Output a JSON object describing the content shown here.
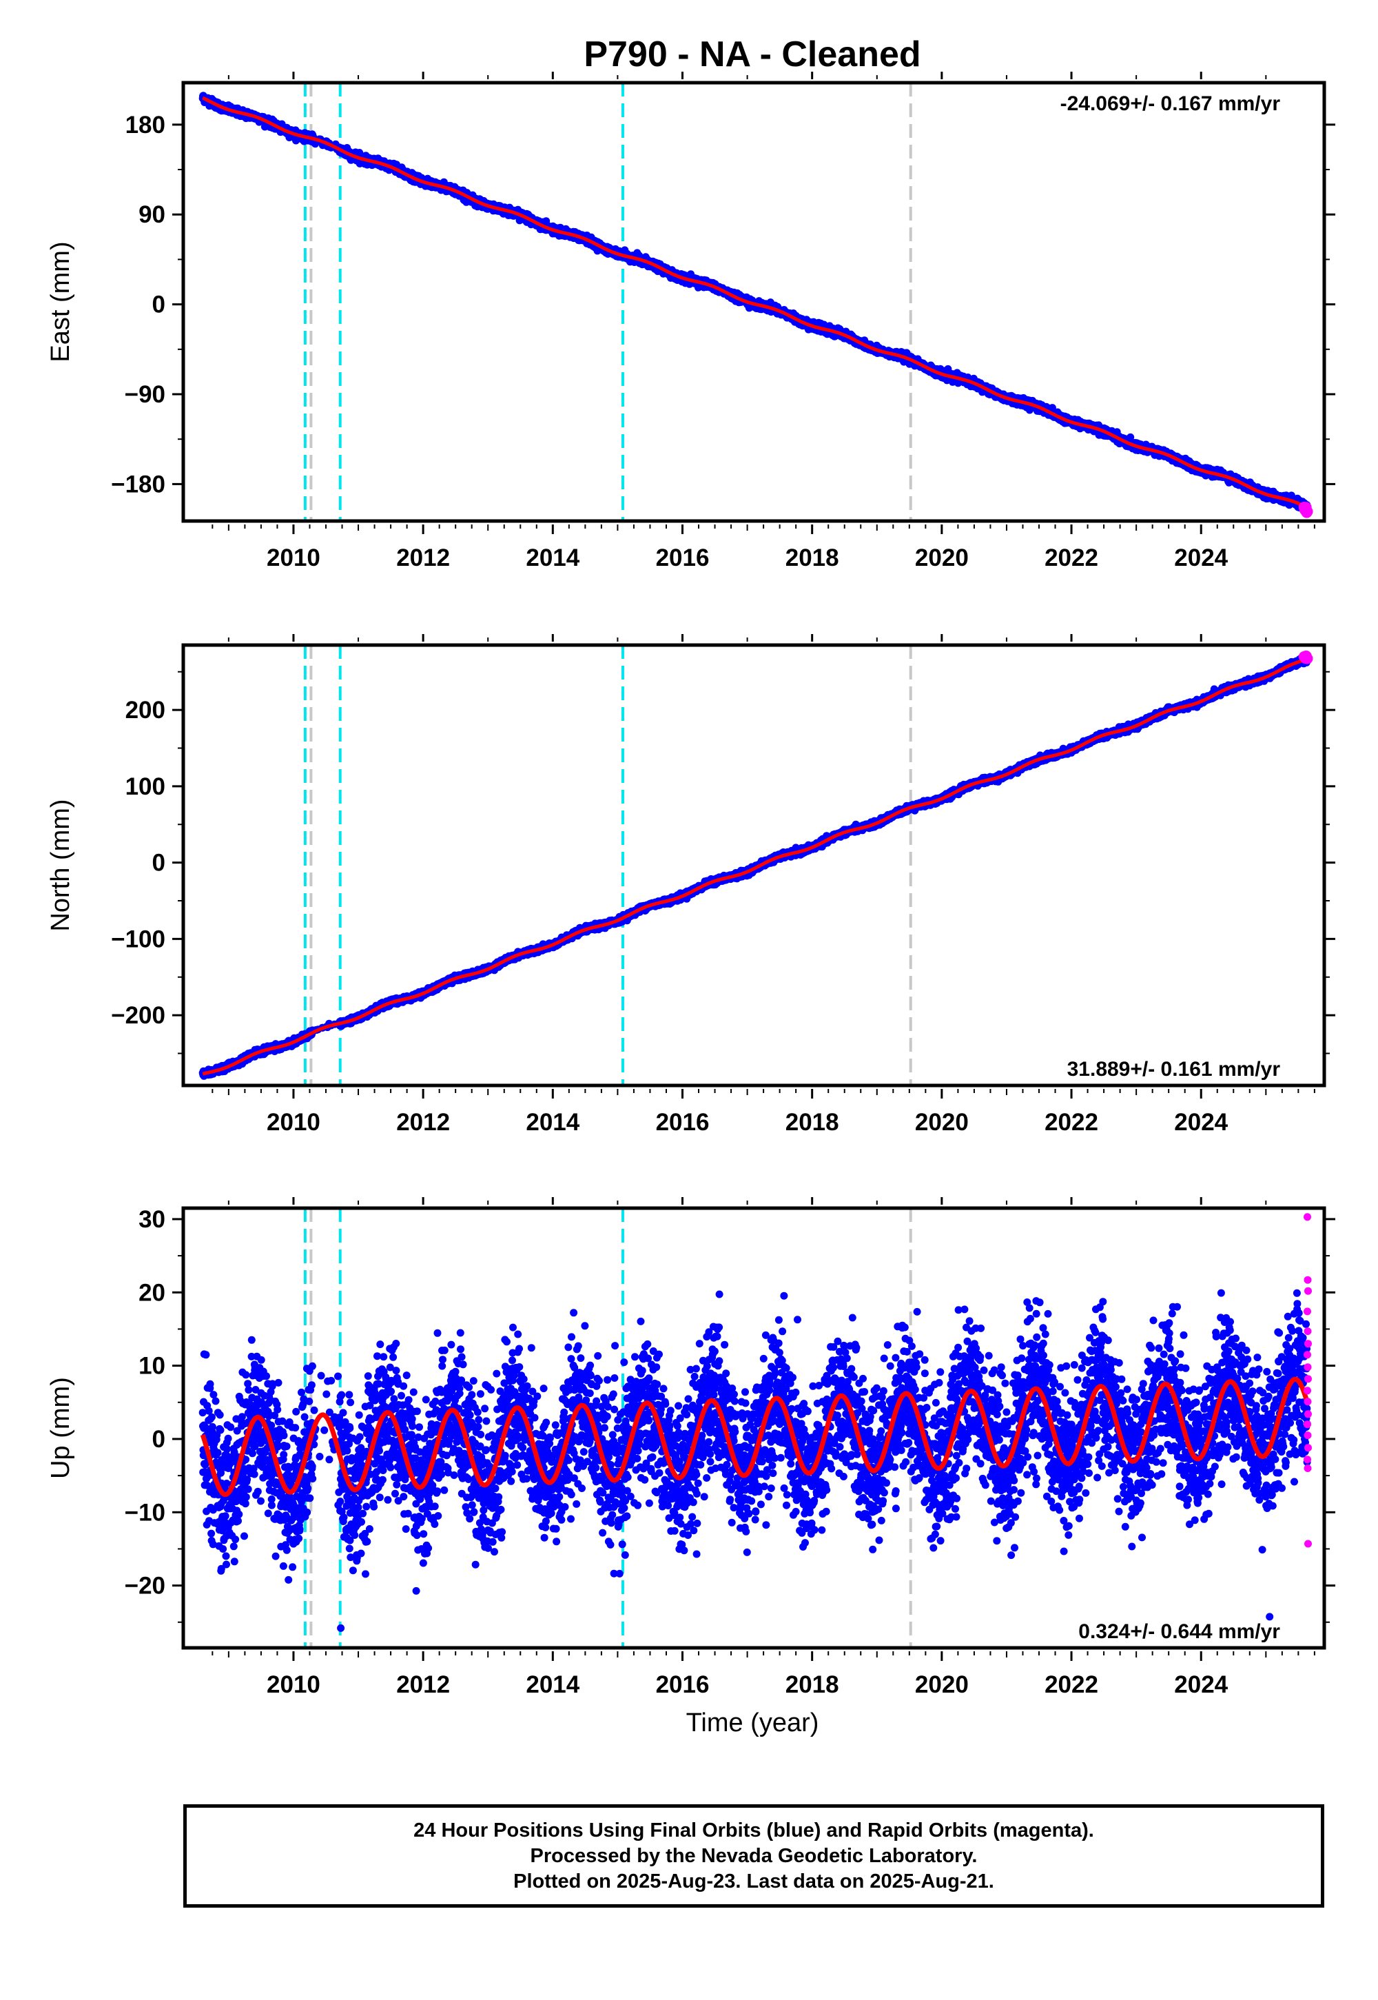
{
  "title": "P790  - NA - Cleaned",
  "xlabel": "Time (year)",
  "x_ticks": [
    "2010",
    "2012",
    "2014",
    "2016",
    "2018",
    "2020",
    "2022",
    "2024"
  ],
  "colors": {
    "final_orbits": "#0000ff",
    "rapid_orbits": "#ff00ff",
    "model": "#ff0000",
    "equipment_change": "#00e5ee",
    "earthquake": "#c8c8c8"
  },
  "vertical_markers": {
    "cyan_dashed": [
      2010.18,
      2010.72,
      2015.08
    ],
    "gray_dashed": [
      2010.27,
      2019.52
    ]
  },
  "footer": {
    "line1": "24 Hour Positions Using Final Orbits (blue) and Rapid Orbits (magenta).",
    "line2": "Processed by the Nevada Geodetic Laboratory.",
    "line3": "Plotted on 2025-Aug-23. Last data on 2025-Aug-21."
  },
  "chart_data": [
    {
      "type": "scatter",
      "ylabel": "East (mm)",
      "rate_label": "-24.069+/- 0.167 mm/yr",
      "xlim": [
        2008.3,
        2025.9
      ],
      "ylim": [
        -217,
        222
      ],
      "y_ticks": [
        "180",
        "90",
        "0",
        "−90",
        "−180"
      ],
      "trend": {
        "start_year": 2008.6,
        "end_year": 2025.64,
        "start_value": 206,
        "rate_mm_per_yr": -24.069,
        "seasonal_amplitude": 1.5
      },
      "rapid_last_value": -206
    },
    {
      "type": "scatter",
      "ylabel": "North (mm)",
      "rate_label": "31.889+/- 0.161 mm/yr",
      "xlim": [
        2008.3,
        2025.9
      ],
      "ylim": [
        -292,
        285
      ],
      "y_ticks": [
        "200",
        "100",
        "0",
        "−100",
        "−200"
      ],
      "trend": {
        "start_year": 2008.6,
        "end_year": 2025.64,
        "start_value": -278,
        "rate_mm_per_yr": 31.889,
        "seasonal_amplitude": 2.0
      },
      "rapid_last_value": 268
    },
    {
      "type": "scatter",
      "ylabel": "Up (mm)",
      "rate_label": "0.324+/- 0.644 mm/yr",
      "xlim": [
        2008.3,
        2025.9
      ],
      "ylim": [
        -28.5,
        31.5
      ],
      "y_ticks": [
        "30",
        "20",
        "10",
        "0",
        "−10",
        "−20"
      ],
      "trend": {
        "start_year": 2008.6,
        "end_year": 2025.64,
        "start_value": -2.5,
        "rate_mm_per_yr": 0.324,
        "seasonal_amplitude": 5.2
      },
      "scatter_sd": 4.8,
      "rapid_values": [
        30.3,
        21.7,
        20.2,
        17.4,
        14.7,
        13.0,
        11.5,
        9.8,
        8.2,
        6.6,
        5.1,
        3.4,
        2.0,
        0.5,
        -1.2,
        -2.8,
        -4.0,
        -14.3
      ]
    }
  ]
}
